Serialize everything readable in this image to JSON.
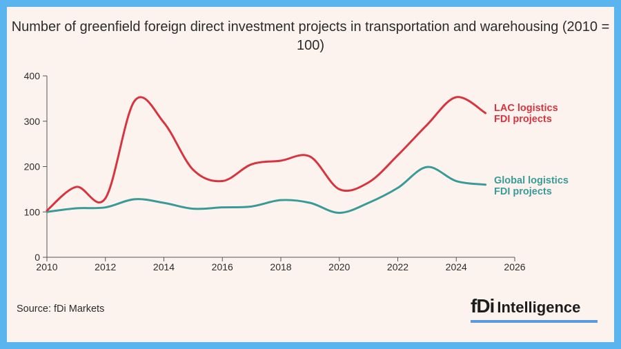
{
  "chart_data": {
    "type": "line",
    "title": "Number of greenfield foreign direct investment projects in transportation and warehousing (2010 = 100)",
    "xlabel": "",
    "ylabel": "",
    "xlim": [
      2010,
      2026
    ],
    "ylim": [
      0,
      400
    ],
    "x_ticks": [
      2010,
      2012,
      2014,
      2016,
      2018,
      2020,
      2022,
      2024,
      2026
    ],
    "y_ticks": [
      0,
      100,
      200,
      300,
      400
    ],
    "grid": false,
    "x": [
      2010,
      2011,
      2012,
      2013,
      2014,
      2015,
      2016,
      2017,
      2018,
      2019,
      2020,
      2021,
      2022,
      2023,
      2024,
      2025
    ],
    "series": [
      {
        "name": "LAC logistics FDI projects",
        "label_lines": [
          "LAC logistics",
          "FDI projects"
        ],
        "color": "#d7343f",
        "values": [
          103,
          155,
          130,
          345,
          297,
          193,
          168,
          205,
          213,
          222,
          150,
          165,
          225,
          292,
          353,
          318
        ]
      },
      {
        "name": "Global logistics FDI projects",
        "label_lines": [
          "Global logistics",
          "FDI projects"
        ],
        "color": "#3a9a98",
        "values": [
          100,
          108,
          110,
          128,
          120,
          107,
          110,
          112,
          126,
          120,
          98,
          120,
          153,
          199,
          168,
          160
        ]
      }
    ]
  },
  "source": "Source: fDi Markets",
  "brand": {
    "fdi": "fDi",
    "name": "Intelligence"
  }
}
